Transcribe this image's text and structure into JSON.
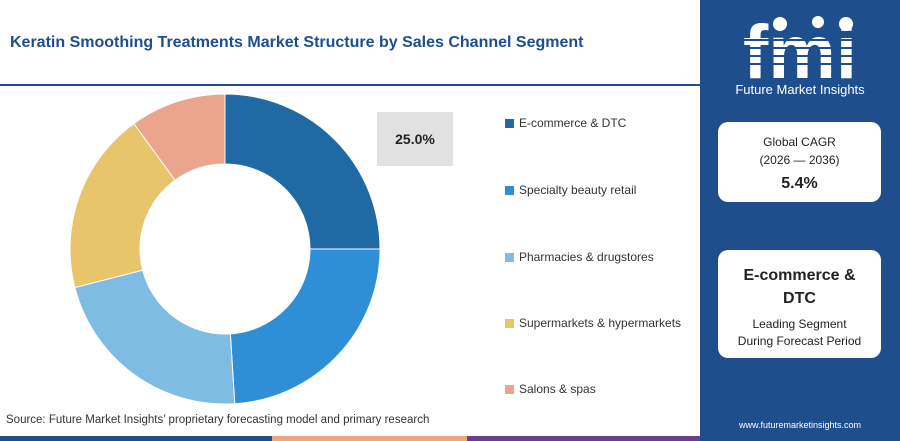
{
  "header": {
    "title": "Keratin Smoothing Treatments Market Structure by Sales Channel Segment"
  },
  "chart_data": {
    "type": "pie",
    "style": "donut",
    "categories": [
      "E-commerce & DTC",
      "Specialty beauty retail",
      "Pharmacies & drugstores",
      "Supermarkets & hypermarkets",
      "Salons & spas"
    ],
    "values": [
      25.0,
      24.0,
      22.0,
      19.0,
      10.0
    ],
    "colors": [
      "#1f6aa5",
      "#2e8fd6",
      "#7fbce4",
      "#e8c56a",
      "#eba58c"
    ],
    "highlight_label": "25.0%",
    "legend_position": "right"
  },
  "legend": {
    "items": [
      {
        "label": "E-commerce & DTC",
        "color": "#1f6aa5"
      },
      {
        "label": "Specialty beauty retail",
        "color": "#2e8fd6"
      },
      {
        "label": "Pharmacies & drugstores",
        "color": "#7fbce4"
      },
      {
        "label": "Supermarkets & hypermarkets",
        "color": "#e8c56a"
      },
      {
        "label": "Salons & spas",
        "color": "#eba58c"
      }
    ]
  },
  "footer": {
    "source": "Source: Future Market Insights’ proprietary forecasting model and primary research",
    "bar_colors": [
      "#1f4e8c",
      "#e8a87c",
      "#6a3d8f",
      "#1f4e8c"
    ]
  },
  "sidebar": {
    "logo_text": "fmi",
    "brand": "Future Market Insights",
    "cagr_label": "Global CAGR",
    "cagr_period": "(2026 — 2036)",
    "cagr_value": "5.4%",
    "segment_name": "E-commerce & DTC",
    "segment_sub1": "Leading Segment",
    "segment_sub2": "During Forecast Period",
    "website": "www.futuremarketinsights.com",
    "background": "#1f4e8c"
  }
}
